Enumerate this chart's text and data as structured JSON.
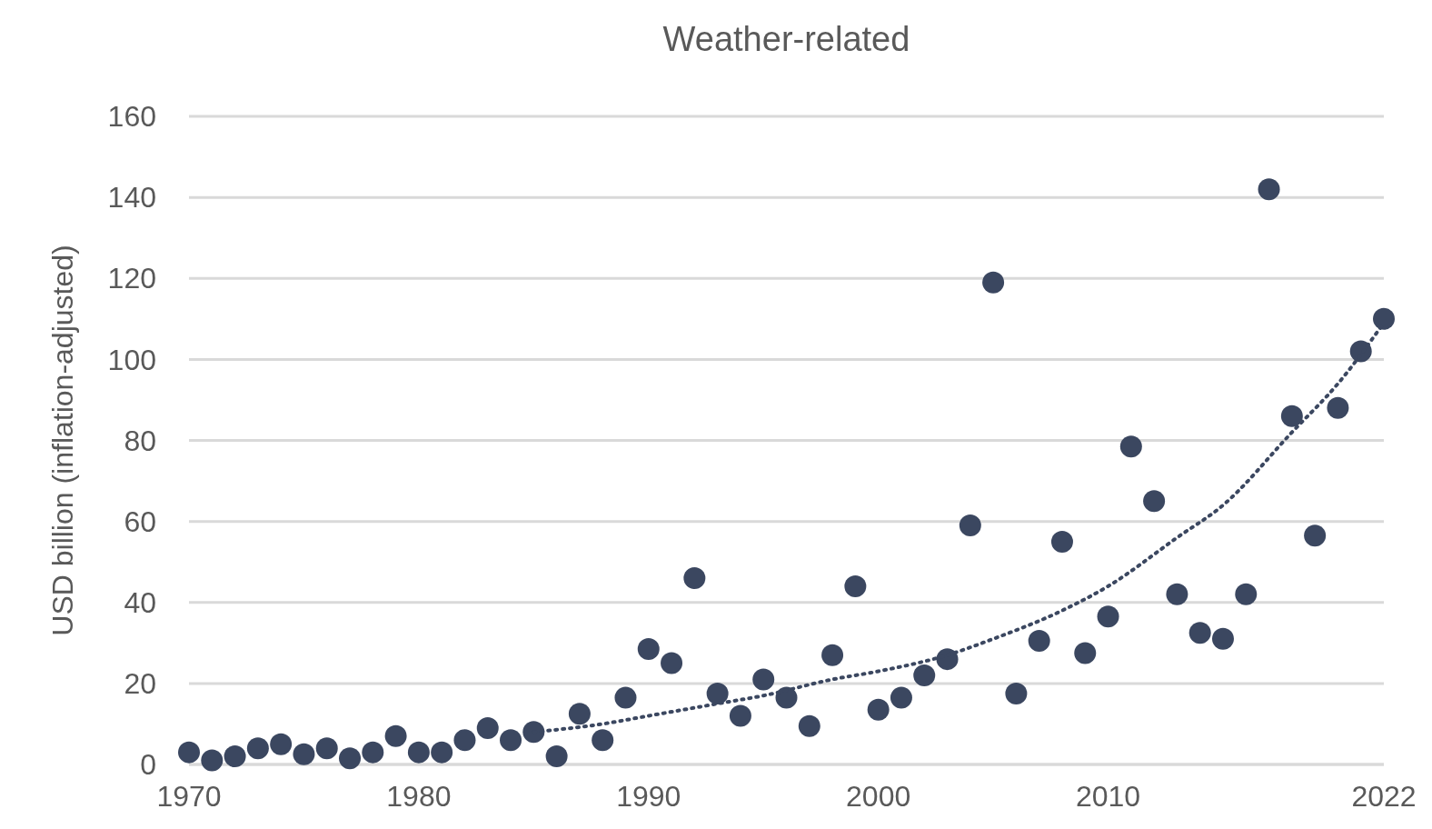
{
  "chart_data": {
    "type": "scatter",
    "title": "Weather-related",
    "ylabel": "USD billion (inflation-adjusted)",
    "xlim": [
      1970,
      2022
    ],
    "xticks": [
      1970,
      1980,
      1990,
      2000,
      2010,
      2022
    ],
    "ylim": [
      0,
      160
    ],
    "yticks": [
      0,
      20,
      40,
      60,
      80,
      100,
      120,
      140,
      160
    ],
    "grid": "y",
    "series": [
      {
        "color": "#3b4760",
        "marker": "circle",
        "x": [
          1970,
          1971,
          1972,
          1973,
          1974,
          1975,
          1976,
          1977,
          1978,
          1979,
          1980,
          1981,
          1982,
          1983,
          1984,
          1985,
          1986,
          1987,
          1988,
          1989,
          1990,
          1991,
          1992,
          1993,
          1994,
          1995,
          1996,
          1997,
          1998,
          1999,
          2000,
          2001,
          2002,
          2003,
          2004,
          2005,
          2006,
          2007,
          2008,
          2009,
          2010,
          2011,
          2012,
          2013,
          2014,
          2015,
          2016,
          2017,
          2018,
          2019,
          2020,
          2021,
          2022
        ],
        "values": [
          3,
          1,
          2,
          4,
          5,
          2.5,
          4,
          1.5,
          3,
          7,
          3,
          3,
          6,
          9,
          6,
          8,
          2,
          12.5,
          6,
          16.5,
          28.5,
          25,
          46,
          17.5,
          12,
          21,
          16.5,
          9.5,
          27,
          44,
          13.5,
          16.5,
          22,
          26,
          59,
          119,
          17.5,
          30.5,
          55,
          27.5,
          36.5,
          78.5,
          65,
          42,
          32.5,
          31,
          42,
          142,
          86,
          56.5,
          88,
          102,
          110
        ]
      },
      {
        "type": "line",
        "color": "#3b4760",
        "marker": "none",
        "line_style": "dotted",
        "x": [
          1985,
          1988,
          1990,
          1993,
          1995,
          1998,
          2000,
          2003,
          2005,
          2008,
          2010,
          2013,
          2015,
          2018,
          2020,
          2022
        ],
        "values": [
          8,
          10,
          12,
          15,
          17,
          21,
          23,
          27,
          31,
          38,
          44,
          56,
          64,
          82,
          94,
          109
        ]
      }
    ]
  }
}
